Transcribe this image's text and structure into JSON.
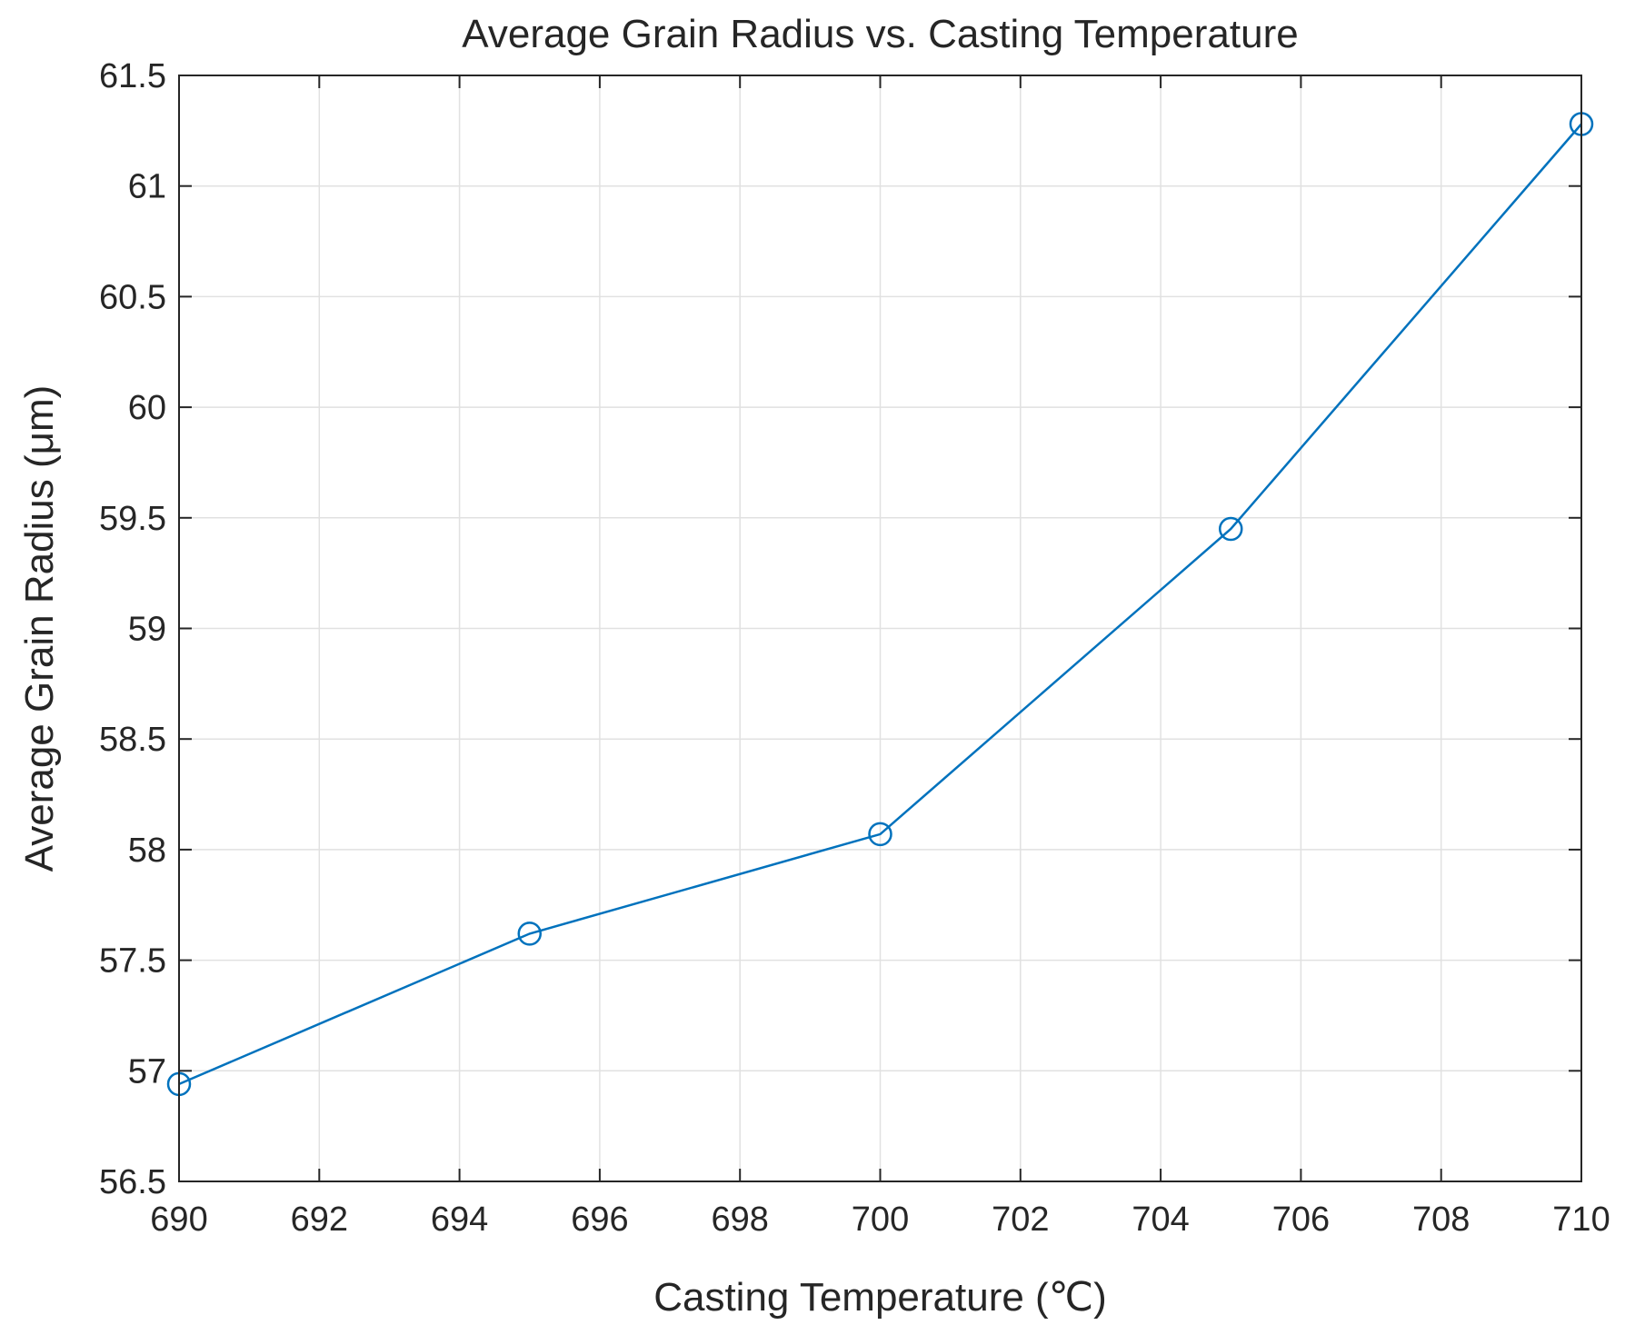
{
  "chart_data": {
    "type": "line",
    "title": "Average Grain Radius vs. Casting Temperature",
    "xlabel": "Casting Temperature (℃)",
    "ylabel": "Average Grain Radius (μm)",
    "xlim": [
      690,
      710
    ],
    "ylim": [
      56.5,
      61.5
    ],
    "x_ticks": [
      690,
      692,
      694,
      696,
      698,
      700,
      702,
      704,
      706,
      708,
      710
    ],
    "y_ticks": [
      56.5,
      57,
      57.5,
      58,
      58.5,
      59,
      59.5,
      60,
      60.5,
      61,
      61.5
    ],
    "x_tick_labels": [
      "690",
      "692",
      "694",
      "696",
      "698",
      "700",
      "702",
      "704",
      "706",
      "708",
      "710"
    ],
    "y_tick_labels": [
      "56.5",
      "57",
      "57.5",
      "58",
      "58.5",
      "59",
      "59.5",
      "60",
      "60.5",
      "61",
      "61.5"
    ],
    "grid": true,
    "legend": "none",
    "series": [
      {
        "name": "Average Grain Radius",
        "color": "#0072BD",
        "marker": "circle",
        "x": [
          690,
          695,
          700,
          705,
          710
        ],
        "y": [
          56.94,
          57.62,
          58.07,
          59.45,
          61.28
        ]
      }
    ]
  }
}
